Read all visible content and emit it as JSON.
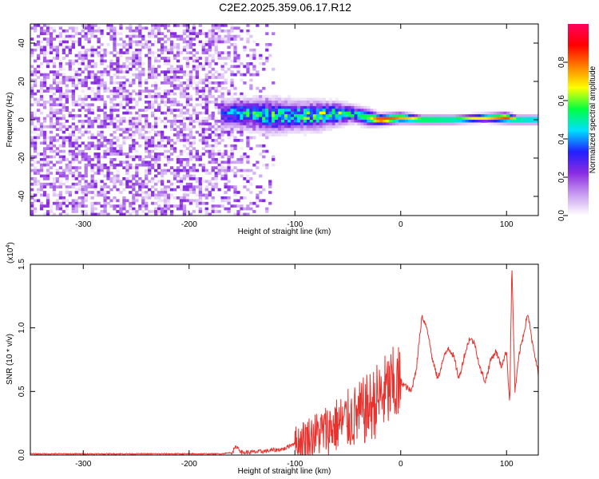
{
  "title": "C2E2.2025.359.06.17.R12",
  "chart_data": [
    {
      "type": "heatmap",
      "name": "spectrogram",
      "xlabel": "Height of straight line (km)",
      "ylabel": "Frequency (Hz)",
      "xlim": [
        -350,
        130
      ],
      "ylim": [
        -50,
        50
      ],
      "x_ticks": [
        "-300",
        "-200",
        "-100",
        "0",
        "100"
      ],
      "x_tick_values": [
        -300,
        -200,
        -100,
        0,
        100
      ],
      "y_ticks": [
        "40",
        "20",
        "0",
        "-20",
        "-40"
      ],
      "y_tick_values": [
        40,
        20,
        0,
        -20,
        -40
      ],
      "colorbar": {
        "label": "Normalized spectral amplitude",
        "range": [
          0,
          1
        ],
        "ticks": [
          "0.0",
          "0.2",
          "0.4",
          "0.6",
          "0.8"
        ],
        "tick_values": [
          0.0,
          0.2,
          0.4,
          0.6,
          0.8
        ],
        "colors": [
          "#ffffff",
          "#c89cf0",
          "#8a2be2",
          "#2020ff",
          "#00e0ff",
          "#00ff40",
          "#ffff00",
          "#ff8000",
          "#ff0000",
          "#ff0060"
        ]
      },
      "band": {
        "x": [
          -170,
          -150,
          -120,
          -100,
          -80,
          -60,
          -45,
          -30,
          -20,
          0,
          20,
          50,
          80,
          100,
          110,
          130
        ],
        "center": [
          3,
          3,
          2,
          2,
          2,
          3,
          3,
          1,
          0,
          1,
          0,
          0,
          1,
          1,
          0,
          0
        ],
        "halfwidth": [
          5,
          5,
          6,
          5,
          5,
          4,
          3,
          3,
          2,
          2,
          1.5,
          1.5,
          1.5,
          2,
          1.5,
          1.5
        ],
        "amplitude": [
          0.35,
          0.45,
          0.5,
          0.5,
          0.55,
          0.55,
          0.5,
          0.6,
          0.9,
          0.75,
          0.65,
          0.6,
          0.7,
          0.85,
          0.6,
          0.55
        ]
      },
      "noise_region": [
        -350,
        -120
      ],
      "noise_amplitude": 0.15
    },
    {
      "type": "line",
      "name": "snr",
      "xlabel": "Height of straight line (km)",
      "ylabel": "SNR (10 * v/v)",
      "y_multiplier": "(x10",
      "y_multiplier_exp": "4",
      "y_multiplier_close": ")",
      "xlim": [
        -350,
        130
      ],
      "ylim": [
        0,
        1.5
      ],
      "x_ticks": [
        "-300",
        "-200",
        "-100",
        "0",
        "100"
      ],
      "x_tick_values": [
        -300,
        -200,
        -100,
        0,
        100
      ],
      "y_ticks": [
        "0.0",
        "0.5",
        "1.0",
        "1.5"
      ],
      "y_tick_values": [
        0.0,
        0.5,
        1.0,
        1.5
      ],
      "color": "#e8322e",
      "series": [
        {
          "x": [
            -350,
            -300,
            -250,
            -200,
            -170,
            -160,
            -155,
            -150,
            -130,
            -110,
            -100,
            -90,
            -80,
            -70,
            -60,
            -50,
            -40,
            -30,
            -20,
            -10,
            0,
            10,
            15,
            20,
            25,
            30,
            35,
            40,
            45,
            50,
            55,
            60,
            65,
            70,
            75,
            80,
            85,
            90,
            95,
            100,
            103,
            105,
            108,
            112,
            116,
            120,
            125,
            130
          ],
          "y": [
            0.01,
            0.01,
            0.01,
            0.01,
            0.01,
            0.02,
            0.07,
            0.02,
            0.03,
            0.05,
            0.1,
            0.15,
            0.18,
            0.22,
            0.26,
            0.3,
            0.34,
            0.4,
            0.48,
            0.55,
            0.58,
            0.5,
            0.7,
            1.1,
            1.0,
            0.75,
            0.6,
            0.75,
            0.85,
            0.78,
            0.6,
            0.78,
            0.92,
            0.88,
            0.68,
            0.58,
            0.75,
            0.82,
            0.7,
            0.82,
            0.4,
            1.5,
            0.5,
            0.8,
            0.95,
            1.12,
            0.85,
            0.65
          ]
        }
      ]
    }
  ]
}
